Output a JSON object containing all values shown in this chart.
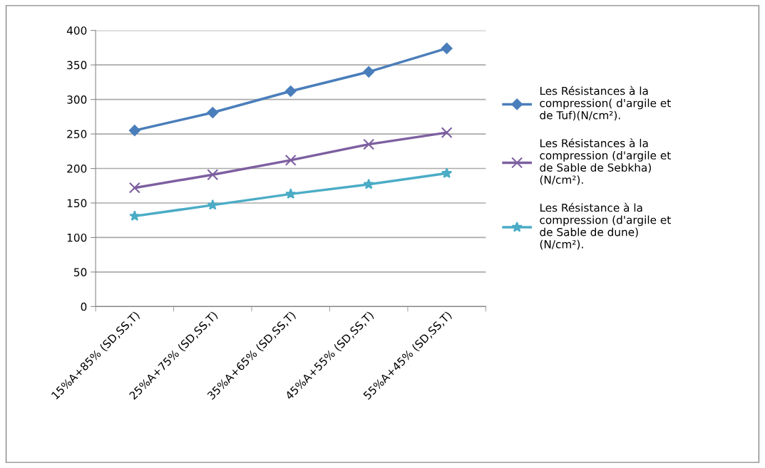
{
  "chart_data": {
    "type": "line",
    "categories": [
      "15%A+85% (SD,SS,T)",
      "25%A+75% (SD,SS,T)",
      "35%A+65% (SD,SS,T)",
      "45%A+55% (SD,SS,T)",
      "55%A+45% (SD,SS,T)"
    ],
    "series": [
      {
        "name": "Les Résistances à la\ncompression( d'argile et\nde Tuf)(N/cm²).",
        "color": "#4a7ebb",
        "marker": "diamond",
        "values": [
          255,
          281,
          312,
          340,
          374
        ]
      },
      {
        "name": "Les Résistances à la\ncompression (d'argile et\nde Sable de Sebkha)\n(N/cm²).",
        "color": "#7d5fa0",
        "marker": "cross",
        "values": [
          172,
          191,
          212,
          235,
          252
        ]
      },
      {
        "name": "Les Résistance à la\ncompression (d'argile et\nde Sable de dune)\n(N/cm²).",
        "color": "#4bacc6",
        "marker": "star",
        "values": [
          131,
          147,
          163,
          177,
          193
        ]
      }
    ],
    "ylim": [
      0,
      400
    ],
    "yticks": [
      0,
      50,
      100,
      150,
      200,
      250,
      300,
      350,
      400
    ],
    "grid": "y",
    "legend": "right",
    "line_style": "solid"
  }
}
